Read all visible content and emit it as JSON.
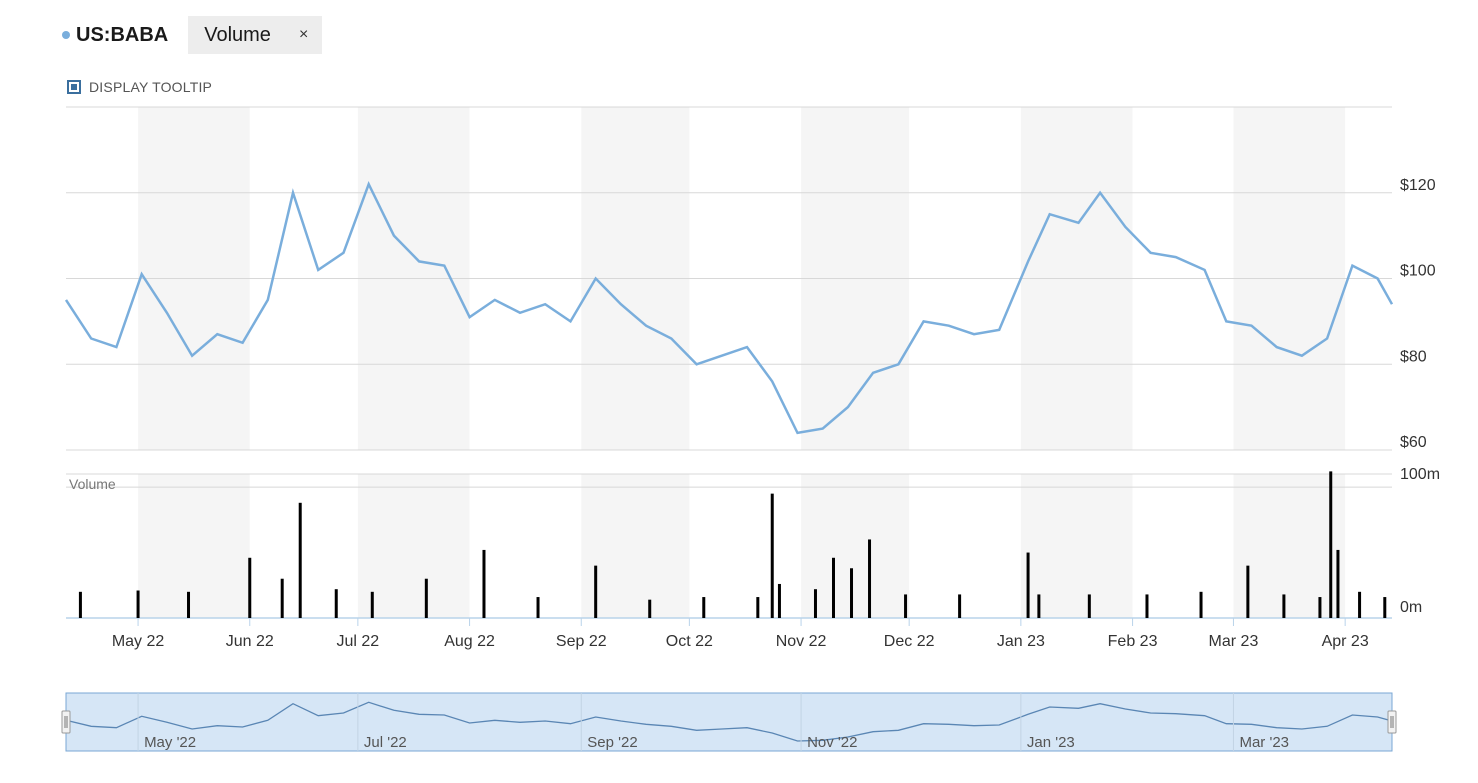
{
  "header": {
    "ticker": "US:BABA",
    "chip_label": "Volume",
    "close_glyph": "×"
  },
  "tooltip": {
    "label": "DISPLAY TOOLTIP",
    "checked": true
  },
  "colors": {
    "price_line": "#7aaedc",
    "volume_bar": "#000000",
    "band": "#f5f5f5",
    "navigator_fill": "#d6e6f6",
    "navigator_border": "#7aa7d4"
  },
  "chart_data": {
    "type": "line",
    "time_range": [
      "2022-04-11",
      "2023-04-14"
    ],
    "price_axis": {
      "ticks": [
        60,
        80,
        100,
        120
      ],
      "tick_labels": [
        "$60",
        "$80",
        "$100",
        "$120"
      ],
      "ylim": [
        60,
        140
      ]
    },
    "volume_axis": {
      "title": "Volume",
      "ticks": [
        0,
        100
      ],
      "tick_labels": [
        "0m",
        "100m"
      ],
      "unit": "millions",
      "ylim": [
        0,
        110
      ]
    },
    "x_axis": {
      "ticks": [
        "2022-05-01",
        "2022-06-01",
        "2022-07-01",
        "2022-08-01",
        "2022-09-01",
        "2022-10-01",
        "2022-11-01",
        "2022-12-01",
        "2023-01-01",
        "2023-02-01",
        "2023-03-01",
        "2023-04-01"
      ],
      "tick_labels": [
        "May 22",
        "Jun 22",
        "Jul 22",
        "Aug 22",
        "Sep 22",
        "Oct 22",
        "Nov 22",
        "Dec 22",
        "Jan 23",
        "Feb 23",
        "Mar 23",
        "Apr 23"
      ]
    },
    "navigator": {
      "tick_labels": [
        "May '22",
        "Jul '22",
        "Sep '22",
        "Nov '22",
        "Jan '23",
        "Mar '23"
      ],
      "ticks": [
        "2022-05-01",
        "2022-07-01",
        "2022-09-01",
        "2022-11-01",
        "2023-01-01",
        "2023-03-01"
      ]
    },
    "price_series": {
      "x": [
        "2022-04-11",
        "2022-04-18",
        "2022-04-25",
        "2022-05-02",
        "2022-05-09",
        "2022-05-16",
        "2022-05-23",
        "2022-05-30",
        "2022-06-06",
        "2022-06-13",
        "2022-06-20",
        "2022-06-27",
        "2022-07-04",
        "2022-07-11",
        "2022-07-18",
        "2022-07-25",
        "2022-08-01",
        "2022-08-08",
        "2022-08-15",
        "2022-08-22",
        "2022-08-29",
        "2022-09-05",
        "2022-09-12",
        "2022-09-19",
        "2022-09-26",
        "2022-10-03",
        "2022-10-10",
        "2022-10-17",
        "2022-10-24",
        "2022-10-31",
        "2022-11-07",
        "2022-11-14",
        "2022-11-21",
        "2022-11-28",
        "2022-12-05",
        "2022-12-12",
        "2022-12-19",
        "2022-12-26",
        "2023-01-03",
        "2023-01-09",
        "2023-01-17",
        "2023-01-23",
        "2023-01-30",
        "2023-02-06",
        "2023-02-13",
        "2023-02-21",
        "2023-02-27",
        "2023-03-06",
        "2023-03-13",
        "2023-03-20",
        "2023-03-27",
        "2023-04-03",
        "2023-04-10",
        "2023-04-14"
      ],
      "y": [
        95,
        86,
        84,
        101,
        92,
        82,
        87,
        85,
        95,
        120,
        102,
        106,
        122,
        110,
        104,
        103,
        91,
        95,
        92,
        94,
        90,
        100,
        94,
        89,
        86,
        80,
        82,
        84,
        76,
        64,
        65,
        70,
        78,
        80,
        90,
        89,
        87,
        88,
        104,
        115,
        113,
        120,
        112,
        106,
        105,
        102,
        90,
        89,
        84,
        82,
        86,
        103,
        100,
        94
      ]
    },
    "volume_series": {
      "x": [
        "2022-04-15",
        "2022-05-01",
        "2022-05-15",
        "2022-06-01",
        "2022-06-10",
        "2022-06-15",
        "2022-06-25",
        "2022-07-05",
        "2022-07-20",
        "2022-08-05",
        "2022-08-20",
        "2022-09-05",
        "2022-09-20",
        "2022-10-05",
        "2022-10-20",
        "2022-10-24",
        "2022-10-26",
        "2022-11-05",
        "2022-11-10",
        "2022-11-15",
        "2022-11-20",
        "2022-11-30",
        "2022-12-15",
        "2023-01-03",
        "2023-01-06",
        "2023-01-20",
        "2023-02-05",
        "2023-02-20",
        "2023-03-05",
        "2023-03-15",
        "2023-03-25",
        "2023-03-28",
        "2023-03-30",
        "2023-04-05",
        "2023-04-12"
      ],
      "y": [
        20,
        21,
        20,
        46,
        30,
        88,
        22,
        20,
        30,
        52,
        16,
        40,
        14,
        16,
        16,
        95,
        26,
        22,
        46,
        38,
        60,
        18,
        18,
        50,
        18,
        18,
        18,
        20,
        40,
        18,
        16,
        112,
        52,
        20,
        16
      ]
    }
  }
}
